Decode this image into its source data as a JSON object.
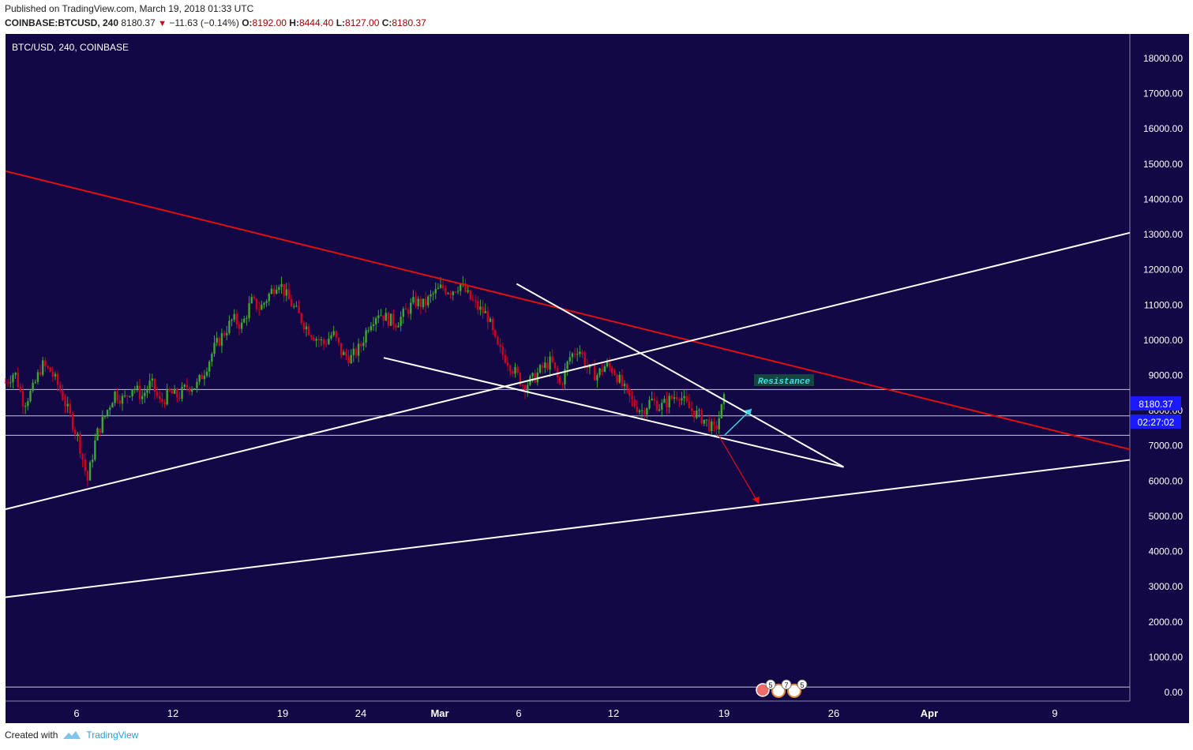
{
  "header": {
    "published": "Published on TradingView.com, March 19, 2018 01:33 UTC",
    "symbol": "COINBASE:BTCUSD, 240",
    "last": "8180.37",
    "change": "−11.63 (−0.14%)",
    "o_label": "O:",
    "o": "8192.00",
    "h_label": "H:",
    "h": "8444.40",
    "l_label": "L:",
    "l": "8127.00",
    "c_label": "C:",
    "c": "8180.37"
  },
  "footer": {
    "created": "Created with",
    "brand": "TradingView"
  },
  "colors": {
    "background": "#110845",
    "up": "#3fa535",
    "down": "#d0021b",
    "trend_red": "#e01010",
    "trend_white": "#ffffff",
    "arrow_cyan": "#3fd7e6",
    "price_badge": "#1a1aff"
  },
  "chart_data": {
    "type": "candlestick",
    "title": "BTC/USD, 240, COINBASE",
    "x_ticks": [
      "6",
      "12",
      "19",
      "24",
      "Mar",
      "6",
      "12",
      "19",
      "26",
      "Apr",
      "9"
    ],
    "y_ticks": [
      "18000.00",
      "17000.00",
      "16000.00",
      "15000.00",
      "14000.00",
      "13000.00",
      "12000.00",
      "11000.00",
      "10000.00",
      "9000.00",
      "8000.00",
      "7000.00",
      "6000.00",
      "5000.00",
      "4000.00",
      "3000.00",
      "2000.00",
      "1000.00",
      "0.00"
    ],
    "ylim": [
      -250,
      18550
    ],
    "last_price": "8180.37",
    "countdown": "02:27:02",
    "annotation": "Resistance",
    "event_badges": [
      "5",
      "7",
      "5"
    ],
    "horizontal_levels": [
      8600,
      7850,
      7300,
      150
    ],
    "price_path": [
      [
        1,
        8800
      ],
      [
        2,
        9100
      ],
      [
        3,
        8200
      ],
      [
        4,
        8600
      ],
      [
        5,
        9300
      ],
      [
        6,
        9100
      ],
      [
        7,
        8600
      ],
      [
        8,
        7900
      ],
      [
        9,
        7200
      ],
      [
        10,
        6000
      ],
      [
        11,
        7300
      ],
      [
        12,
        7900
      ],
      [
        13,
        8500
      ],
      [
        14,
        8300
      ],
      [
        15,
        8700
      ],
      [
        16,
        8400
      ],
      [
        17,
        8800
      ],
      [
        18,
        8200
      ],
      [
        19,
        8500
      ],
      [
        20,
        8400
      ],
      [
        21,
        8700
      ],
      [
        22,
        8700
      ],
      [
        23,
        9200
      ],
      [
        24,
        9800
      ],
      [
        25,
        10200
      ],
      [
        26,
        10600
      ],
      [
        27,
        10400
      ],
      [
        28,
        11100
      ],
      [
        29,
        10900
      ],
      [
        30,
        11300
      ],
      [
        31,
        11700
      ],
      [
        32,
        11200
      ],
      [
        33,
        10800
      ],
      [
        34,
        10400
      ],
      [
        35,
        10100
      ],
      [
        36,
        9900
      ],
      [
        37,
        10200
      ],
      [
        38,
        9600
      ],
      [
        39,
        9500
      ],
      [
        40,
        9800
      ],
      [
        41,
        10500
      ],
      [
        42,
        10800
      ],
      [
        43,
        10600
      ],
      [
        44,
        10500
      ],
      [
        45,
        10800
      ],
      [
        46,
        11100
      ],
      [
        47,
        11000
      ],
      [
        48,
        11300
      ],
      [
        49,
        11500
      ],
      [
        50,
        11400
      ],
      [
        51,
        11600
      ],
      [
        52,
        11200
      ],
      [
        53,
        10900
      ],
      [
        54,
        10700
      ],
      [
        55,
        9800
      ],
      [
        56,
        9500
      ],
      [
        57,
        9100
      ],
      [
        58,
        8700
      ],
      [
        59,
        8900
      ],
      [
        60,
        9200
      ],
      [
        61,
        9400
      ],
      [
        62,
        8700
      ],
      [
        63,
        9500
      ],
      [
        64,
        9800
      ],
      [
        65,
        9200
      ],
      [
        66,
        9000
      ],
      [
        67,
        9300
      ],
      [
        68,
        9100
      ],
      [
        69,
        8600
      ],
      [
        70,
        8200
      ],
      [
        71,
        8000
      ],
      [
        72,
        8300
      ],
      [
        73,
        8100
      ],
      [
        74,
        8300
      ],
      [
        75,
        8500
      ],
      [
        76,
        8100
      ],
      [
        77,
        7900
      ],
      [
        78,
        7700
      ],
      [
        79,
        7400
      ],
      [
        80,
        8300
      ]
    ],
    "trendlines": [
      {
        "color": "red",
        "from": [
          0,
          14800
        ],
        "to": [
          110,
          6900
        ]
      },
      {
        "color": "white",
        "from": [
          0,
          5200
        ],
        "to": [
          110,
          13050
        ]
      },
      {
        "color": "white",
        "from": [
          0,
          2700
        ],
        "to": [
          110,
          6600
        ]
      },
      {
        "color": "white",
        "from": [
          37,
          9500
        ],
        "to": [
          82,
          6400
        ]
      },
      {
        "color": "white",
        "from": [
          50,
          11600
        ],
        "to": [
          82,
          6400
        ]
      }
    ]
  }
}
